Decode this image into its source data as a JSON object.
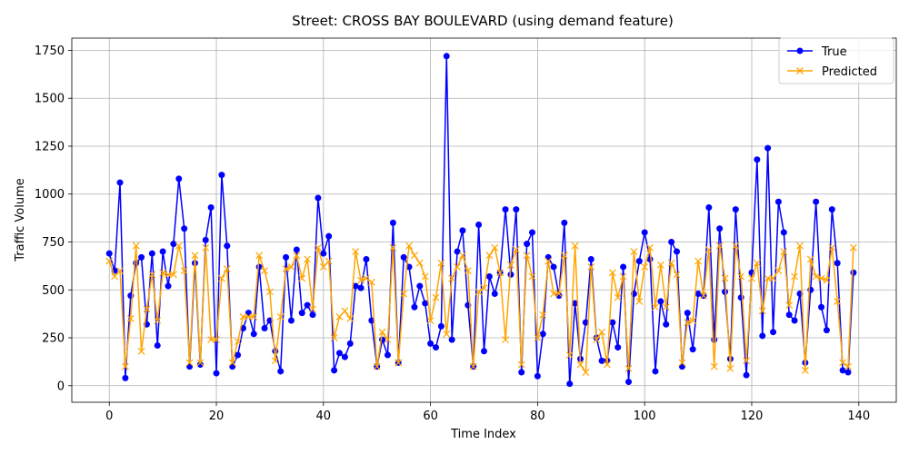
{
  "chart_data": {
    "type": "line",
    "title": "Street: CROSS BAY BOULEVARD (using demand feature)",
    "xlabel": "Time Index",
    "ylabel": "Traffic Volume",
    "xlim": [
      -7,
      147
    ],
    "ylim": [
      -86.3,
      1813.8
    ],
    "x_ticks": [
      0,
      20,
      40,
      60,
      80,
      100,
      120,
      140
    ],
    "y_ticks": [
      0,
      250,
      500,
      750,
      1000,
      1250,
      1500,
      1750
    ],
    "grid": true,
    "legend_position": "top-right",
    "series": [
      {
        "name": "True",
        "color": "#0000ff",
        "marker": "circle",
        "values": [
          690,
          600,
          1060,
          40,
          470,
          640,
          670,
          320,
          690,
          210,
          700,
          520,
          740,
          1080,
          820,
          100,
          640,
          110,
          760,
          930,
          65,
          1100,
          730,
          100,
          160,
          300,
          380,
          270,
          620,
          300,
          340,
          180,
          75,
          670,
          340,
          710,
          380,
          420,
          370,
          980,
          690,
          780,
          80,
          170,
          150,
          220,
          520,
          510,
          660,
          340,
          100,
          240,
          160,
          850,
          120,
          670,
          620,
          410,
          520,
          430,
          220,
          200,
          310,
          1720,
          240,
          700,
          810,
          420,
          100,
          840,
          180,
          570,
          480,
          590,
          920,
          580,
          920,
          70,
          740,
          800,
          50,
          270,
          670,
          620,
          470,
          850,
          10,
          430,
          140,
          330,
          660,
          250,
          130,
          130,
          330,
          200,
          620,
          20,
          480,
          650,
          800,
          660,
          75,
          440,
          320,
          750,
          700,
          100,
          380,
          190,
          480,
          470,
          930,
          240,
          820,
          490,
          140,
          920,
          460,
          55,
          590,
          1180,
          260,
          1240,
          280,
          960,
          800,
          370,
          340,
          480,
          120,
          500,
          960,
          410,
          290,
          920,
          640,
          80,
          70,
          590
        ]
      },
      {
        "name": "Predicted",
        "color": "#ffa500",
        "marker": "x",
        "values": [
          650,
          570,
          600,
          100,
          350,
          730,
          180,
          400,
          580,
          340,
          590,
          580,
          580,
          730,
          600,
          120,
          680,
          120,
          720,
          240,
          240,
          560,
          610,
          120,
          230,
          360,
          360,
          360,
          680,
          600,
          490,
          130,
          360,
          610,
          620,
          680,
          560,
          660,
          400,
          720,
          620,
          650,
          250,
          360,
          390,
          350,
          700,
          550,
          560,
          540,
          100,
          280,
          240,
          720,
          120,
          480,
          730,
          680,
          640,
          570,
          340,
          460,
          640,
          270,
          560,
          620,
          680,
          600,
          100,
          490,
          510,
          680,
          720,
          590,
          240,
          630,
          710,
          110,
          680,
          570,
          250,
          370,
          650,
          480,
          480,
          680,
          160,
          730,
          110,
          70,
          620,
          240,
          280,
          110,
          590,
          460,
          570,
          90,
          700,
          440,
          620,
          720,
          410,
          630,
          410,
          640,
          580,
          120,
          330,
          340,
          650,
          470,
          710,
          100,
          730,
          560,
          90,
          730,
          570,
          130,
          560,
          640,
          390,
          560,
          560,
          600,
          700,
          420,
          570,
          730,
          80,
          660,
          570,
          560,
          550,
          720,
          440,
          120,
          100,
          720
        ]
      }
    ]
  }
}
